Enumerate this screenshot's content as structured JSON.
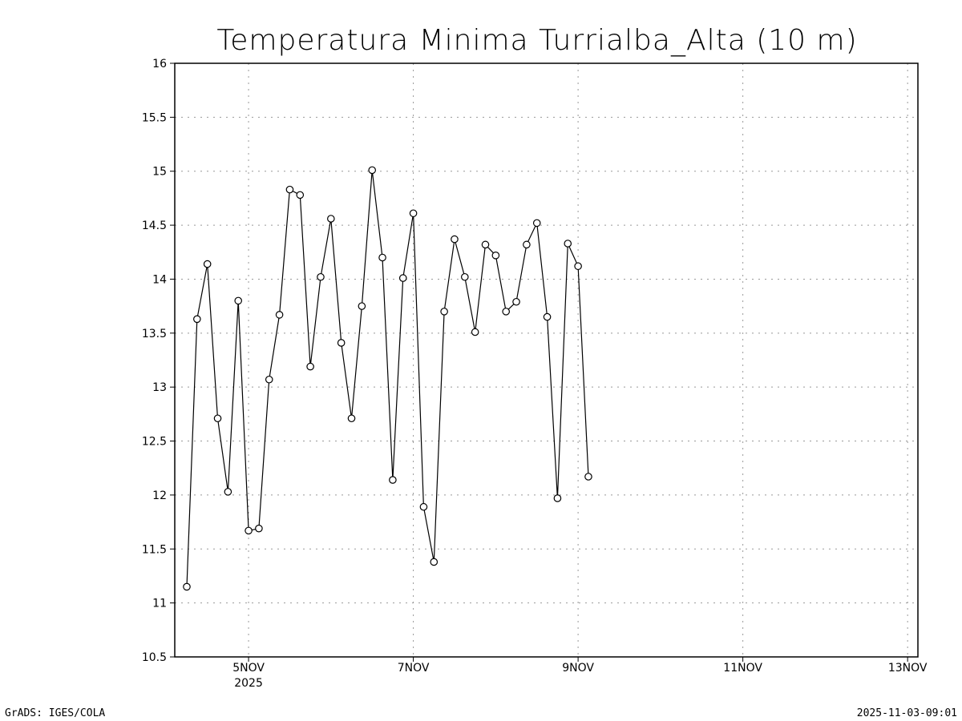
{
  "chart_data": {
    "type": "line",
    "title": "Temperatura Minima Turrialba_Alta (10 m)",
    "xlabel": "",
    "ylabel": "",
    "ylim": [
      10.5,
      16
    ],
    "yticks": [
      "10.5",
      "11",
      "11.5",
      "12",
      "12.5",
      "13",
      "13.5",
      "14",
      "14.5",
      "15",
      "15.5",
      "16"
    ],
    "xlim_hours_from_4NOV_00Z": [
      2.5,
      219
    ],
    "xticks": [
      {
        "label": "5NOV",
        "sublabel": "2025",
        "hours": 24
      },
      {
        "label": "7NOV",
        "sublabel": "",
        "hours": 72
      },
      {
        "label": "9NOV",
        "sublabel": "",
        "hours": 120
      },
      {
        "label": "11NOV",
        "sublabel": "",
        "hours": 168
      },
      {
        "label": "13NOV",
        "sublabel": "",
        "hours": 216
      }
    ],
    "grid": true,
    "series": [
      {
        "name": "Temperatura Minima",
        "start": "2025-11-04 06Z",
        "start_hours_from_4NOV_00Z": 6,
        "step_hours": 3,
        "marker": "open-circle",
        "color": "#000000",
        "values": [
          11.15,
          13.63,
          14.14,
          12.71,
          12.03,
          13.8,
          11.67,
          11.69,
          13.07,
          13.67,
          14.83,
          14.78,
          13.19,
          14.02,
          14.56,
          13.41,
          12.71,
          13.75,
          15.01,
          14.2,
          12.14,
          14.01,
          14.61,
          11.89,
          11.38,
          13.7,
          14.37,
          14.02,
          13.51,
          14.32,
          14.22,
          13.7,
          13.79,
          14.32,
          14.52,
          13.65,
          11.97,
          14.33,
          14.12,
          12.17
        ]
      }
    ]
  },
  "footer": {
    "left": "GrADS: IGES/COLA",
    "right": "2025-11-03-09:01"
  }
}
